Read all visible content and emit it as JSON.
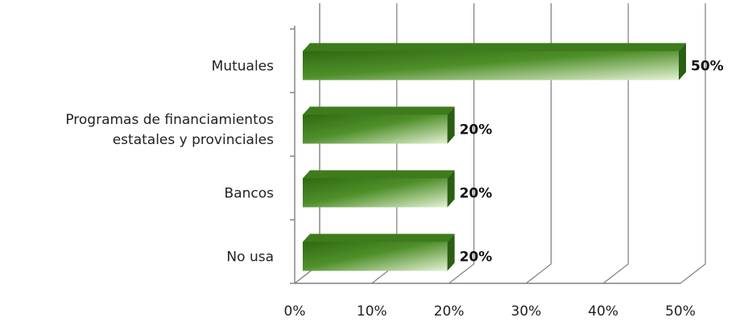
{
  "chart_data": {
    "type": "bar",
    "orientation": "horizontal",
    "style": "3d",
    "categories": [
      "Mutuales",
      "Programas de financiamientos estatales y provinciales",
      "Bancos",
      "No usa"
    ],
    "category_lines": [
      [
        "Mutuales"
      ],
      [
        "Programas de financiamientos",
        "estatales y provinciales"
      ],
      [
        "Bancos"
      ],
      [
        "No usa"
      ]
    ],
    "values": [
      50,
      20,
      20,
      20
    ],
    "data_labels": [
      "50%",
      "20%",
      "20%",
      "20%"
    ],
    "xlim": [
      0,
      50
    ],
    "xticks": [
      0,
      10,
      20,
      30,
      40,
      50
    ],
    "xtick_labels": [
      "0%",
      "10%",
      "20%",
      "30%",
      "40%",
      "50%"
    ],
    "title": "",
    "xlabel": "",
    "ylabel": "",
    "grid": true,
    "legend": "none",
    "colors": {
      "bar_dark": "#2e6a10",
      "bar_mid": "#4f8f2a",
      "bar_light": "#e4f2d3",
      "bar_top": "#3f7a1c",
      "bar_side": "#2a5e12",
      "grid": "#7f7f7f"
    }
  }
}
